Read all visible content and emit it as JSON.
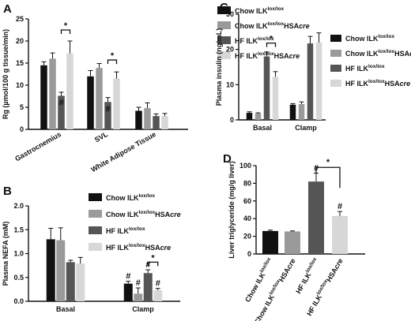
{
  "colors": {
    "chow_ilk": "#111111",
    "chow_cre": "#9a9a9a",
    "hf_ilk": "#555555",
    "hf_cre": "#d7d7d7"
  },
  "chart_data": [
    {
      "panel": "A",
      "type": "bar",
      "ylabel": "Rg (µmol/100 g tissue/min)",
      "ylim": [
        0,
        25
      ],
      "yticks": [
        0,
        5,
        10,
        15,
        20,
        25
      ],
      "categories": [
        "Gastrocnemius",
        "SVL",
        "White Adipose Tissue"
      ],
      "series": [
        {
          "name": "Chow ILK",
          "sup": "lox/lox",
          "suffix": "",
          "color": "#111111",
          "values": [
            14.5,
            12.0,
            4.2
          ],
          "errors": [
            0.8,
            1.3,
            0.8
          ]
        },
        {
          "name": "Chow ILK",
          "sup": "lox/lox",
          "suffix": "HSAcre",
          "color": "#9a9a9a",
          "values": [
            16.0,
            13.9,
            4.8
          ],
          "errors": [
            1.3,
            1.0,
            1.2
          ]
        },
        {
          "name": "HF ILK",
          "sup": "lox/lox",
          "suffix": "",
          "color": "#555555",
          "values": [
            7.6,
            6.2,
            3.0
          ],
          "errors": [
            0.8,
            1.0,
            0.5
          ]
        },
        {
          "name": "HF ILK",
          "sup": "lox/lox",
          "suffix": "HSAcre",
          "color": "#d7d7d7",
          "values": [
            17.2,
            11.5,
            3.0
          ],
          "errors": [
            2.8,
            1.5,
            0.6
          ]
        }
      ],
      "annotations": [
        {
          "category": 0,
          "series": 2,
          "text": "#"
        },
        {
          "category": 1,
          "series": 2,
          "text": "#"
        }
      ],
      "brackets": [
        {
          "category": 0,
          "from": 2,
          "to": 3,
          "y": 22.5,
          "text": "*"
        },
        {
          "category": 1,
          "from": 2,
          "to": 3,
          "y": 15.7,
          "text": "*"
        }
      ]
    },
    {
      "panel": "B",
      "type": "bar",
      "ylabel": "Plasma NEFA (mM)",
      "ylim": [
        0,
        2.0
      ],
      "yticks": [
        0.0,
        0.5,
        1.0,
        1.5,
        2.0
      ],
      "categories": [
        "Basal",
        "Clamp"
      ],
      "series": [
        {
          "name": "Chow ILK",
          "sup": "lox/lox",
          "suffix": "",
          "color": "#111111",
          "values": [
            1.3,
            0.37
          ],
          "errors": [
            0.23,
            0.05
          ]
        },
        {
          "name": "Chow ILK",
          "sup": "lox/lox",
          "suffix": "HSAcre",
          "color": "#9a9a9a",
          "values": [
            1.28,
            0.16
          ],
          "errors": [
            0.26,
            0.12
          ]
        },
        {
          "name": "HF ILK",
          "sup": "lox/lox",
          "suffix": "",
          "color": "#555555",
          "values": [
            0.82,
            0.59
          ],
          "errors": [
            0.04,
            0.07
          ]
        },
        {
          "name": "HF ILK",
          "sup": "lox/lox",
          "suffix": "HSAcre",
          "color": "#d7d7d7",
          "values": [
            0.79,
            0.23
          ],
          "errors": [
            0.13,
            0.04
          ]
        }
      ],
      "annotations": [
        {
          "category": 1,
          "series": 0,
          "text": "#"
        },
        {
          "category": 1,
          "series": 1,
          "text": "#"
        },
        {
          "category": 1,
          "series": 2,
          "text": "#"
        },
        {
          "category": 1,
          "series": 3,
          "text": "#"
        }
      ],
      "brackets": [
        {
          "category": 1,
          "from": 2,
          "to": 3,
          "y": 0.82,
          "text": "*"
        }
      ]
    },
    {
      "panel": "C",
      "type": "bar",
      "ylabel": "Plasma insulin (ng/mL)",
      "ylim": [
        0,
        30
      ],
      "yticks": [
        0,
        10,
        20,
        30
      ],
      "categories": [
        "Basal",
        "Clamp"
      ],
      "series": [
        {
          "name": "Chow ILK",
          "sup": "lox/lox",
          "suffix": "",
          "color": "#111111",
          "values": [
            2.0,
            4.3
          ],
          "errors": [
            0.3,
            0.3
          ]
        },
        {
          "name": "Chow ILK",
          "sup": "lox/lox",
          "suffix": "HSAcre",
          "color": "#9a9a9a",
          "values": [
            1.8,
            4.5
          ],
          "errors": [
            0.2,
            0.6
          ]
        },
        {
          "name": "HF ILK",
          "sup": "lox/lox",
          "suffix": "",
          "color": "#555555",
          "values": [
            18.0,
            21.7
          ],
          "errors": [
            1.3,
            2.0
          ]
        },
        {
          "name": "HF ILK",
          "sup": "lox/lox",
          "suffix": "HSAcre",
          "color": "#d7d7d7",
          "values": [
            12.2,
            22.0
          ],
          "errors": [
            1.5,
            2.7
          ]
        }
      ],
      "annotations": [],
      "brackets": [
        {
          "category": 0,
          "from": 2,
          "to": 3,
          "y": 21.8,
          "text": "*"
        }
      ]
    },
    {
      "panel": "D",
      "type": "bar",
      "ylabel": "Liver triglyceride (mg/g liver)",
      "ylim": [
        0,
        100
      ],
      "yticks": [
        0,
        20,
        40,
        60,
        80,
        100
      ],
      "categories": [
        "Chow ILK",
        "Chow ILK",
        "HF ILK",
        "HF ILK"
      ],
      "category_sups": [
        "lox/lox",
        "lox/lox",
        "lox/lox",
        "lox/lox"
      ],
      "category_suffixes": [
        "",
        "HSAcre",
        "",
        "HSAcre"
      ],
      "values": [
        26,
        25.5,
        82,
        43
      ],
      "errors": [
        1.0,
        0.6,
        9.5,
        5.0
      ],
      "colors": [
        "#111111",
        "#9a9a9a",
        "#555555",
        "#d7d7d7"
      ],
      "annotations": [
        {
          "index": 2,
          "text": "#"
        },
        {
          "index": 3,
          "text": "#"
        }
      ],
      "brackets": [
        {
          "from": 2,
          "to": 3,
          "y": 98,
          "text": "*"
        }
      ]
    }
  ]
}
